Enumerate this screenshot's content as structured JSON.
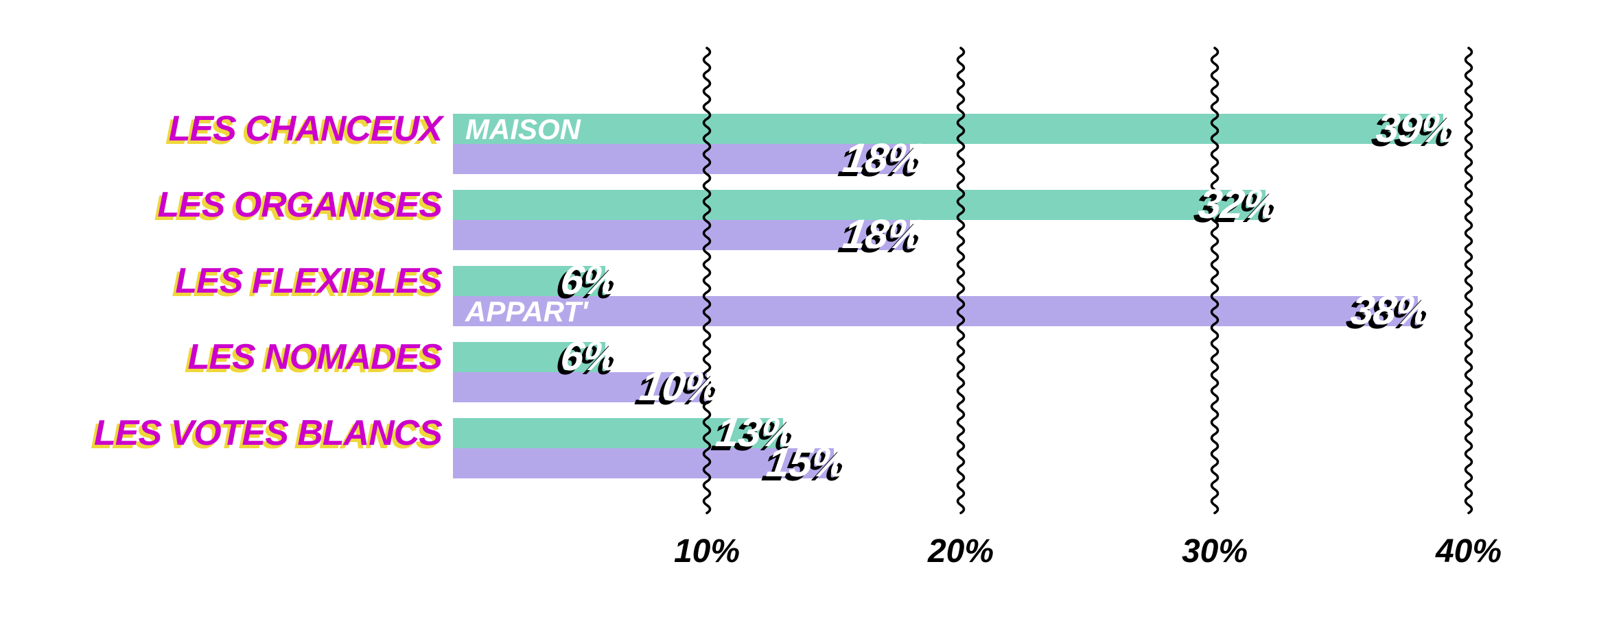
{
  "chart_data": {
    "type": "bar",
    "orientation": "horizontal",
    "title": "",
    "categories": [
      "LES CHANCEUX",
      "LES ORGANISES",
      "LES FLEXIBLES",
      "LES NOMADES",
      "LES VOTES BLANCS"
    ],
    "series": [
      {
        "name": "MAISON",
        "color": "#7FD4BE",
        "values": [
          39,
          32,
          6,
          6,
          13
        ],
        "labels": [
          "39%",
          "32%",
          "6%",
          "6%",
          "13%"
        ],
        "inline_label_row": 0
      },
      {
        "name": "APPART'",
        "color": "#B5A8EA",
        "values": [
          18,
          18,
          38,
          10,
          15
        ],
        "labels": [
          "18%",
          "18%",
          "38%",
          "10%",
          "15%"
        ],
        "inline_label_row": 2
      }
    ],
    "x_ticks": [
      {
        "value": 10,
        "label": "10%"
      },
      {
        "value": 20,
        "label": "20%"
      },
      {
        "value": 30,
        "label": "30%"
      },
      {
        "value": 40,
        "label": "40%"
      }
    ],
    "xlim": [
      0,
      40
    ],
    "xlabel": "",
    "ylabel": "",
    "grid": "wavy vertical gridlines at each x tick, drawn over the bars",
    "legend_position": "series names printed in white inside the first MAISON bar and the third APPART' bar"
  },
  "styles": {
    "background": "#FFFFFF",
    "category_text_color": "#CC00CC",
    "category_shadow_color": "#EFD73B",
    "value_text_color": "#FFFFFF",
    "value_shadow_color": "#000000",
    "series_label_color": "#FFFFFF",
    "axis_tick_color": "#000000",
    "gridline_color": "#000000"
  }
}
